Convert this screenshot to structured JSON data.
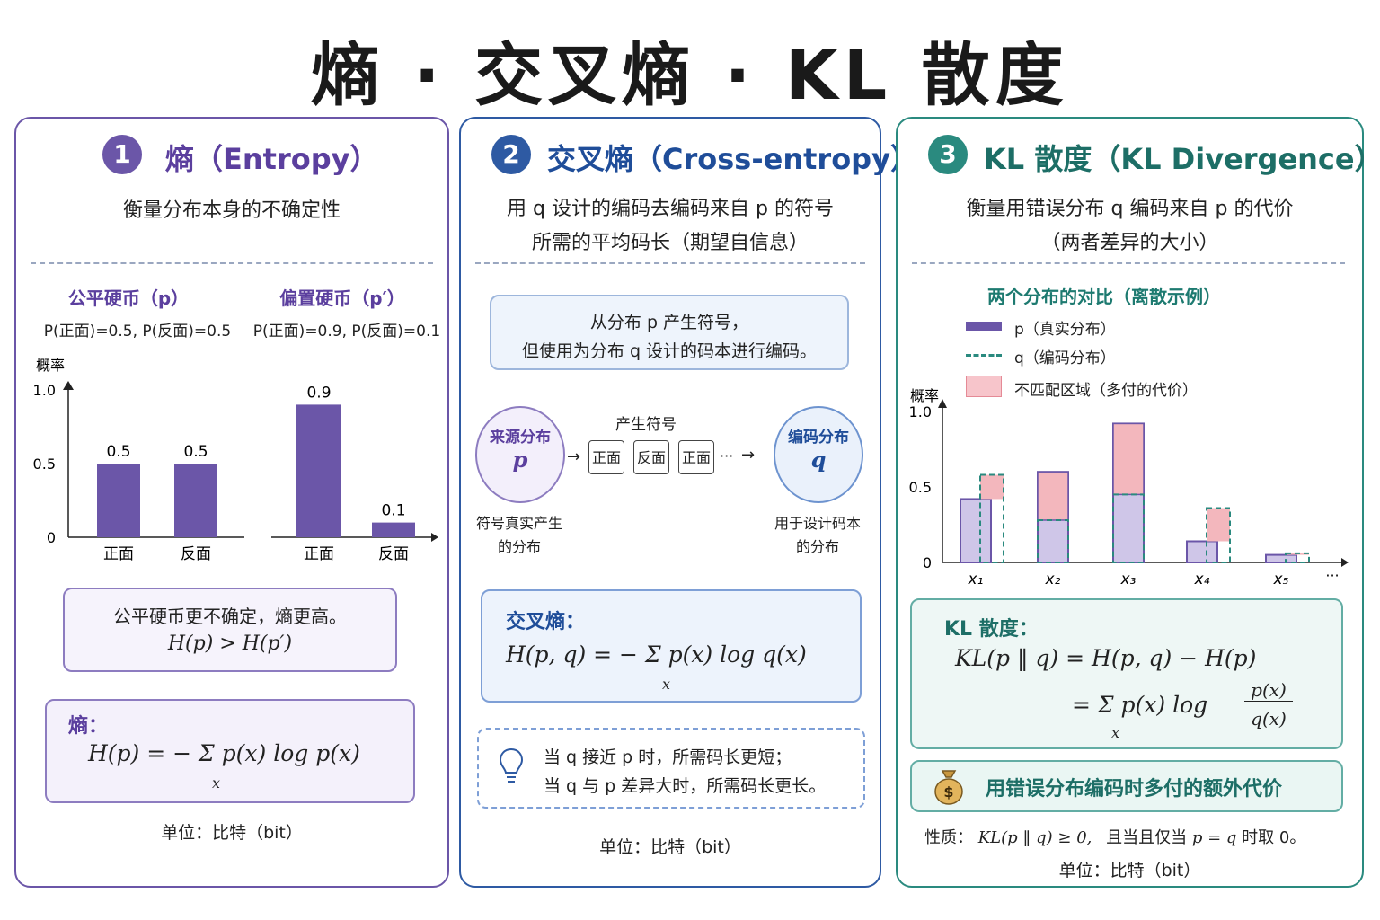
{
  "title": "熵 · 交叉熵 · KL 散度",
  "colors": {
    "purple": "#6b56a8",
    "blue": "#2e5aa3",
    "teal": "#2a8a7f",
    "pink": "#f3b7bd"
  },
  "panel1": {
    "badge": "1",
    "title": "熵（Entropy）",
    "subtitle": "衡量分布本身的不确定性",
    "fair_label": "公平硬币（p）",
    "fair_desc": "P(正面)=0.5, P(反面)=0.5",
    "biased_label": "偏置硬币（p′）",
    "biased_desc": "P(正面)=0.9, P(反面)=0.1",
    "note_line1": "公平硬币更不确定，熵更高。",
    "note_line2": "H(p) > H(p′)",
    "formula_label": "熵：",
    "formula": "H(p) = − Σ p(x) log p(x)",
    "formula_sub": "x",
    "unit": "单位：比特（bit）"
  },
  "panel2": {
    "badge": "2",
    "title": "交叉熵（Cross-entropy）",
    "subtitle_line1": "用 q 设计的编码去编码来自 p 的符号",
    "subtitle_line2": "所需的平均码长（期望自信息）",
    "info_line1": "从分布 p 产生符号，",
    "info_line2": "但使用为分布 q 设计的码本进行编码。",
    "flow_label": "产生符号",
    "source_title": "来源分布",
    "source_var": "p",
    "source_caption_1": "符号真实产生",
    "source_caption_2": "的分布",
    "target_title": "编码分布",
    "target_var": "q",
    "target_caption_1": "用于设计码本",
    "target_caption_2": "的分布",
    "symbols": [
      "正面",
      "反面",
      "正面"
    ],
    "ellipsis": "···",
    "formula_label": "交叉熵：",
    "formula": "H(p, q) = − Σ p(x) log q(x)",
    "formula_sub": "x",
    "tip_line1": "当 q 接近 p 时，所需码长更短；",
    "tip_line2": "当 q 与 p 差异大时，所需码长更长。",
    "unit": "单位：比特（bit）"
  },
  "panel3": {
    "badge": "3",
    "title": "KL 散度（KL Divergence）",
    "subtitle_line1": "衡量用错误分布 q 编码来自 p 的代价",
    "subtitle_line2": "（两者差异的大小）",
    "chart_title": "两个分布的对比（离散示例）",
    "legend_p": "p（真实分布）",
    "legend_q": "q（编码分布）",
    "legend_mismatch": "不匹配区域（多付的代价）",
    "formula_label": "KL 散度：",
    "formula_line1": "KL(p ‖ q) = H(p, q) − H(p)",
    "formula_line2": "= Σ p(x) log",
    "formula_frac_num": "p(x)",
    "formula_frac_den": "q(x)",
    "formula_sub": "x",
    "highlight": "用错误分布编码时多付的额外代价",
    "property_prefix": "性质：",
    "property_math": "KL(p ‖ q) ≥ 0,",
    "property_text": "且当且仅当",
    "property_math2": "p = q",
    "property_suffix": "时取 0。",
    "unit": "单位：比特（bit）"
  },
  "chart_data": [
    {
      "type": "bar",
      "ylabel": "概率",
      "ylim": [
        0,
        1.0
      ],
      "yticks": [
        "0",
        "0.5",
        "1.0"
      ],
      "categories": [
        "正面",
        "反面"
      ],
      "values": [
        0.5,
        0.5
      ],
      "value_labels": [
        "0.5",
        "0.5"
      ]
    },
    {
      "type": "bar",
      "ylim": [
        0,
        1.0
      ],
      "categories": [
        "正面",
        "反面"
      ],
      "values": [
        0.9,
        0.1
      ],
      "value_labels": [
        "0.9",
        "0.1"
      ]
    },
    {
      "type": "bar",
      "ylabel": "概率",
      "ylim": [
        0,
        1.0
      ],
      "yticks": [
        "0",
        "0.5",
        "1.0"
      ],
      "categories": [
        "x₁",
        "x₂",
        "x₃",
        "x₄",
        "x₅"
      ],
      "trailing": "···",
      "series": [
        {
          "name": "p（真实分布）",
          "values": [
            0.42,
            0.6,
            0.92,
            0.14,
            0.05
          ]
        },
        {
          "name": "q（编码分布）",
          "values": [
            0.58,
            0.28,
            0.45,
            0.36,
            0.06
          ]
        }
      ]
    }
  ]
}
